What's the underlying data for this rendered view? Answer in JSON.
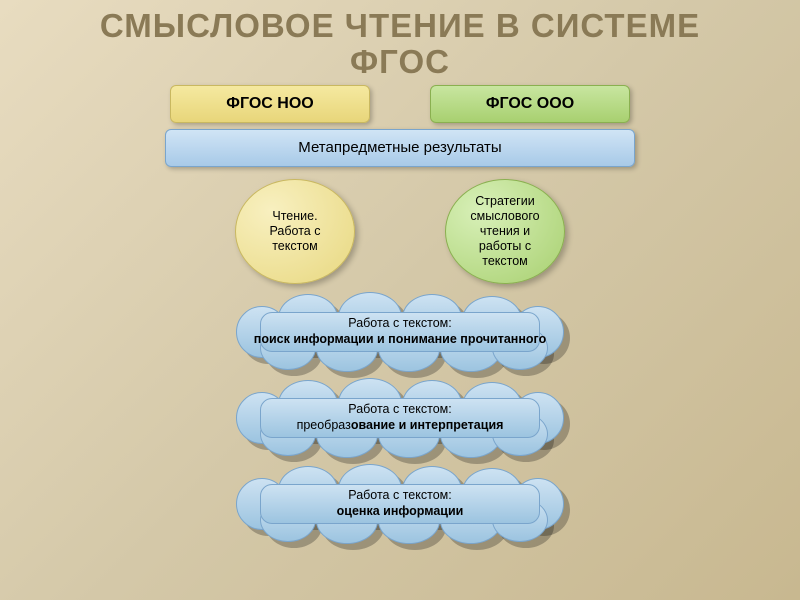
{
  "title": {
    "line1": "СМЫСЛОВОЕ ЧТЕНИЕ В СИСТЕМЕ",
    "line2": "ФГОС",
    "color": "#8a7a56"
  },
  "top_boxes": {
    "noo": {
      "label": "ФГОС НОО",
      "text_color": "#202020"
    },
    "ooo": {
      "label": "ФГОС ООО",
      "text_color": "#202020"
    }
  },
  "meta_bar": {
    "label": "Метапредметные результаты",
    "text_color": "#202020"
  },
  "circles": {
    "left": {
      "text": "Чтение.\nРабота с\nтекстом"
    },
    "right": {
      "text": "Стратегии\nсмыслового\nчтения и\nработы с\nтекстом"
    }
  },
  "clouds": [
    {
      "prefix": "Работа с текстом:",
      "bold": "поиск информации и понимание прочитанного"
    },
    {
      "prefix": "Работа с текстом:",
      "bold_prefix": "преобраз",
      "bold": "ование и интерпретация"
    },
    {
      "prefix": "Работа с текстом:",
      "bold": "оценка информации"
    }
  ],
  "style": {
    "title_color": "#8a7a56",
    "noo_bg_top": "#f5e9a0",
    "noo_bg_bot": "#e8d67a",
    "noo_border": "#c9b860",
    "ooo_bg_top": "#c8e6a0",
    "ooo_bg_bot": "#a8d070",
    "ooo_border": "#8ab050",
    "meta_bg_top": "#d0e4f5",
    "meta_bg_bot": "#a8cae8",
    "meta_border": "#7aa5cc",
    "cloud_bg_top": "#cde2f2",
    "cloud_bg_bot": "#9cc4e0",
    "cloud_border": "#7aa5cc",
    "background_top": "#e8dcc0",
    "background_bot": "#c8b890"
  }
}
